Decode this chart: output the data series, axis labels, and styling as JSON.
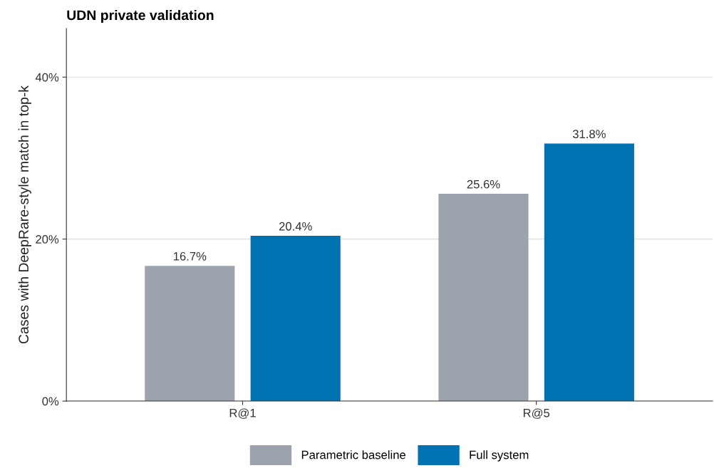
{
  "chart_data": {
    "type": "bar",
    "title": "UDN private validation",
    "ylabel": "Cases with DeepRare-style match in top-k",
    "categories": [
      "R@1",
      "R@5"
    ],
    "series": [
      {
        "name": "Parametric baseline",
        "color": "#9ca3ae",
        "values": [
          16.7,
          25.6
        ],
        "value_labels": [
          "16.7%",
          "25.6%"
        ]
      },
      {
        "name": "Full system",
        "color": "#0072b2",
        "values": [
          20.4,
          31.8
        ],
        "value_labels": [
          "20.4%",
          "31.8%"
        ]
      }
    ],
    "ylim": [
      0,
      46
    ],
    "yticks": [
      {
        "value": 0,
        "label": "0%"
      },
      {
        "value": 20,
        "label": "20%"
      },
      {
        "value": 40,
        "label": "40%"
      }
    ],
    "grid": "y",
    "legend": "bottom"
  }
}
